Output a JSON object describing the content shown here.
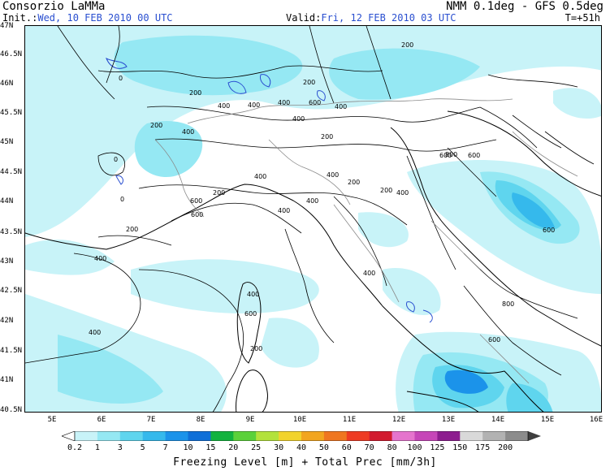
{
  "header": {
    "org": "Consorzio LaMMa",
    "init_label": "Init.:",
    "init_value": "Wed, 10 FEB 2010   00 UTC",
    "model": "NMM 0.1deg - GFS 0.5deg",
    "valid_label": "Valid:",
    "valid_value": "Fri, 12 FEB 2010   03 UTC",
    "lead": "T=+51h"
  },
  "axes": {
    "lat_labels": [
      "47N",
      "46.5N",
      "46N",
      "45.5N",
      "45N",
      "44.5N",
      "44N",
      "43.5N",
      "43N",
      "42.5N",
      "42N",
      "41.5N",
      "41N",
      "40.5N"
    ],
    "lon_labels": [
      "5E",
      "6E",
      "7E",
      "8E",
      "9E",
      "10E",
      "11E",
      "12E",
      "13E",
      "14E",
      "15E",
      "16E"
    ]
  },
  "legend": {
    "labels": [
      "0.2",
      "1",
      "3",
      "5",
      "7",
      "10",
      "15",
      "20",
      "25",
      "30",
      "40",
      "50",
      "60",
      "70",
      "80",
      "100",
      "125",
      "150",
      "175",
      "200"
    ],
    "colors": [
      "#c8f3f8",
      "#95e8f3",
      "#5fd5ee",
      "#35b9ec",
      "#1b93ea",
      "#0f6fd8",
      "#12b33e",
      "#5bd13a",
      "#b3e23b",
      "#f2d32c",
      "#f2a51f",
      "#ef7620",
      "#ee3b23",
      "#d21a2e",
      "#e574cd",
      "#c646b8",
      "#8d1d8f",
      "#d9d9d9",
      "#b2b2b2",
      "#8c8c8c",
      "#666666",
      "#3e3e3e"
    ],
    "title": "Freezing Level [m] + Total Prec [mm/3h]"
  },
  "contour_labels": [
    {
      "text": "0"
    },
    {
      "text": "0"
    },
    {
      "text": "0"
    },
    {
      "text": "200"
    },
    {
      "text": "200"
    },
    {
      "text": "400"
    },
    {
      "text": "400"
    },
    {
      "text": "400"
    },
    {
      "text": "200"
    },
    {
      "text": "200"
    },
    {
      "text": "400"
    },
    {
      "text": "600"
    },
    {
      "text": "600"
    },
    {
      "text": "200"
    },
    {
      "text": "400"
    },
    {
      "text": "200"
    },
    {
      "text": "400"
    },
    {
      "text": "600"
    },
    {
      "text": "400"
    },
    {
      "text": "400"
    },
    {
      "text": "200"
    },
    {
      "text": "400"
    },
    {
      "text": "400"
    },
    {
      "text": "400"
    },
    {
      "text": "600"
    },
    {
      "text": "800"
    },
    {
      "text": "400"
    },
    {
      "text": "600"
    },
    {
      "text": "800"
    },
    {
      "text": "400"
    },
    {
      "text": "200"
    },
    {
      "text": "600"
    },
    {
      "text": "400"
    },
    {
      "text": "200"
    },
    {
      "text": "400"
    },
    {
      "text": "600"
    },
    {
      "text": "200"
    },
    {
      "text": "600"
    }
  ]
}
